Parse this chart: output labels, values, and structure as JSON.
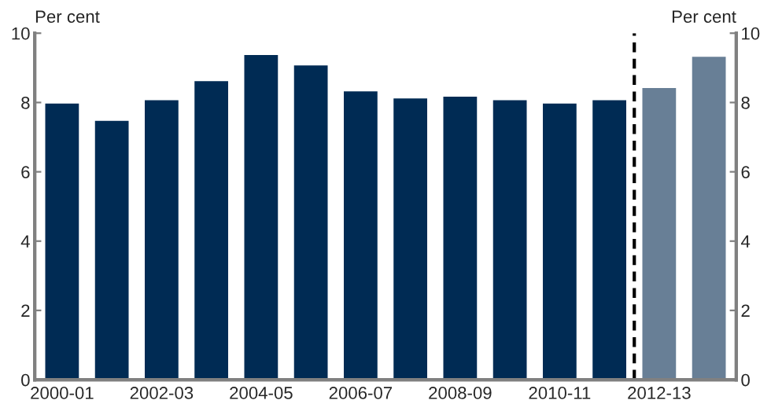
{
  "chart_data": {
    "type": "bar",
    "categories": [
      "2000-01",
      null,
      "2002-03",
      null,
      "2004-05",
      null,
      "2006-07",
      null,
      "2008-09",
      null,
      "2010-11",
      null,
      "2012-13",
      null
    ],
    "values": [
      8.0,
      7.5,
      8.1,
      8.65,
      9.4,
      9.1,
      8.35,
      8.15,
      8.2,
      8.1,
      8.0,
      8.1,
      8.45,
      9.35
    ],
    "colors": [
      "#002b54",
      "#002b54",
      "#002b54",
      "#002b54",
      "#002b54",
      "#002b54",
      "#002b54",
      "#002b54",
      "#002b54",
      "#002b54",
      "#002b54",
      "#002b54",
      "#687f96",
      "#687f96"
    ],
    "ylabel": "Per cent",
    "y2label": "Per cent",
    "ylim": [
      0,
      10
    ],
    "yticks": [
      0,
      2,
      4,
      6,
      8,
      10
    ],
    "y2lim": [
      0,
      10
    ],
    "y2ticks": [
      0,
      2,
      4,
      6,
      8,
      10
    ],
    "grid": false,
    "legend": false
  }
}
